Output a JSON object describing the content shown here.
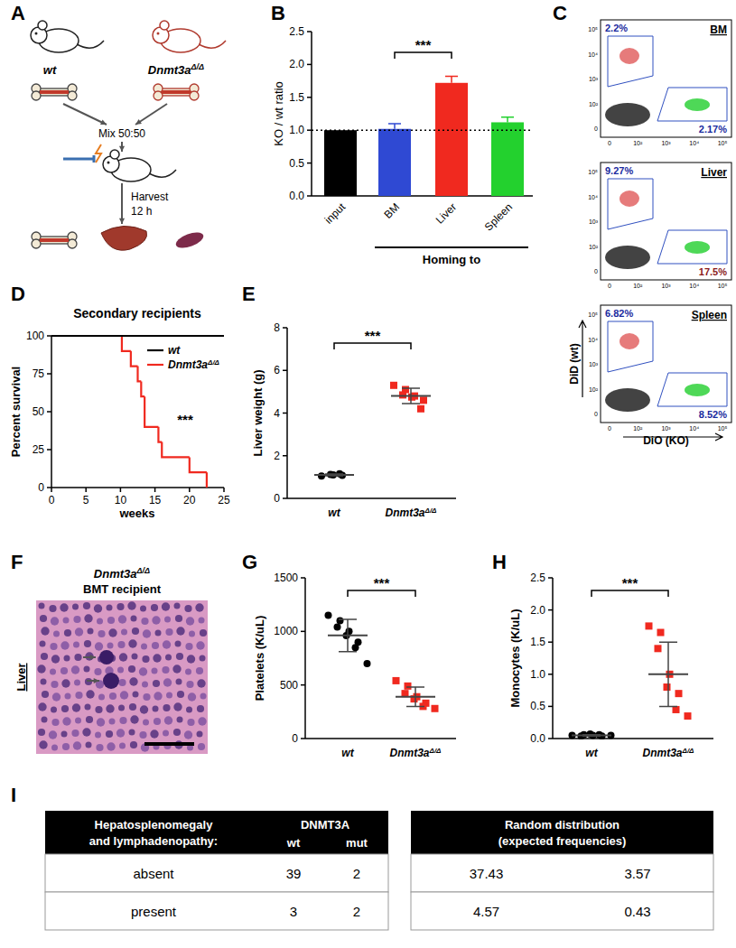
{
  "panel_labels": [
    "A",
    "B",
    "C",
    "D",
    "E",
    "F",
    "G",
    "H",
    "I"
  ],
  "diagram": {
    "donors": [
      "wt",
      "Dnmt3aΔ/Δ"
    ],
    "mix": "Mix 50:50",
    "harvest": [
      "Harvest",
      "12 h"
    ]
  },
  "chart_data": [
    {
      "type": "bar",
      "y_label": "KO / wt ratio",
      "categories": [
        "input",
        "BM",
        "Liver",
        "Spleen"
      ],
      "values": [
        1.0,
        1.02,
        1.72,
        1.12
      ],
      "errors": [
        0,
        0.08,
        0.1,
        0.08
      ],
      "colors": [
        "#000000",
        "#2f49d3",
        "#f0291f",
        "#23d12e"
      ],
      "ylim": [
        0,
        2.5
      ],
      "yticks": [
        {
          "value": 0,
          "label": "0.0"
        },
        {
          "value": 0.5,
          "label": "0.5"
        },
        {
          "value": 1,
          "label": "1.0"
        },
        {
          "value": 1.5,
          "label": "1.5"
        },
        {
          "value": 2,
          "label": "2.0"
        },
        {
          "value": 2.5,
          "label": "2.5"
        }
      ],
      "reference_line": 1,
      "group_label": "Homing to",
      "significance": "***"
    },
    {
      "type": "line",
      "line_style": "step",
      "title": "Secondary recipients",
      "x_label": "weeks",
      "y_label": "Percent survival",
      "xlim": [
        0,
        25
      ],
      "xticks": [
        0,
        5,
        10,
        15,
        20,
        25
      ],
      "ylim": [
        0,
        100
      ],
      "yticks": [
        0,
        25,
        50,
        75,
        100
      ],
      "legend": "upper right",
      "significance": "***",
      "series": [
        {
          "name": "wt",
          "color": "#000000",
          "x": [
            0,
            25
          ],
          "values": [
            100,
            100
          ]
        },
        {
          "name": "Dnmt3aΔ/Δ",
          "color": "#f0291f",
          "x": [
            0,
            10.2,
            11.5,
            12.5,
            13,
            13.5,
            15.5,
            16,
            20,
            22.5
          ],
          "values": [
            100,
            90,
            80,
            70,
            60,
            40,
            30,
            20,
            10,
            0
          ]
        }
      ]
    },
    {
      "type": "dot",
      "y_label": "Liver weight (g)",
      "ylim": [
        0,
        8
      ],
      "yticks": [
        0,
        2,
        4,
        6,
        8
      ],
      "significance": "***",
      "groups": [
        {
          "label": "wt",
          "color": "#000000",
          "marker": "circle",
          "values": [
            1.05,
            1.1,
            1.12,
            1.08,
            1.15
          ],
          "mean": 1.1,
          "sd": 0.04
        },
        {
          "label": "Dnmt3aΔ/Δ",
          "color": "#f0291f",
          "marker": "square",
          "values": [
            5.3,
            5.1,
            4.85,
            4.8,
            4.75,
            4.6,
            4.2
          ],
          "mean": 4.8,
          "sd": 0.36
        }
      ]
    },
    {
      "type": "dot",
      "y_label": "Platelets (K/uL)",
      "ylim": [
        0,
        1500
      ],
      "yticks": [
        0,
        500,
        1000,
        1500
      ],
      "significance": "***",
      "groups": [
        {
          "label": "wt",
          "color": "#000000",
          "marker": "circle",
          "values": [
            1150,
            1100,
            1040,
            1000,
            960,
            900,
            850,
            700
          ],
          "mean": 962,
          "sd": 150
        },
        {
          "label": "Dnmt3aΔ/Δ",
          "color": "#f0291f",
          "marker": "square",
          "values": [
            540,
            490,
            420,
            390,
            370,
            330,
            300,
            280
          ],
          "mean": 390,
          "sd": 90
        }
      ]
    },
    {
      "type": "dot",
      "y_label": "Monocytes (K/uL)",
      "ylim": [
        0,
        2.5
      ],
      "yticks": [
        {
          "value": 0,
          "label": "0.0"
        },
        {
          "value": 0.5,
          "label": "0.5"
        },
        {
          "value": 1,
          "label": "1.0"
        },
        {
          "value": 1.5,
          "label": "1.5"
        },
        {
          "value": 2,
          "label": "2.0"
        },
        {
          "value": 2.5,
          "label": "2.5"
        }
      ],
      "significance": "***",
      "groups": [
        {
          "label": "wt",
          "color": "#000000",
          "marker": "circle",
          "values": [
            0.05,
            0.06,
            0.04,
            0.05,
            0.07,
            0.04,
            0.06,
            0.05
          ],
          "mean": 0.05,
          "sd": 0.01
        },
        {
          "label": "Dnmt3aΔ/Δ",
          "color": "#f0291f",
          "marker": "square",
          "values": [
            1.75,
            1.65,
            1.4,
            1.0,
            0.8,
            0.7,
            0.45,
            0.35
          ],
          "mean": 1.0,
          "sd": 0.5
        }
      ]
    }
  ],
  "flow_cytometry": {
    "x_label": "DiO (KO)",
    "y_label": "DiD (wt)",
    "x_ticks": [
      "0",
      "10²",
      "10³",
      "10⁴",
      "10⁵"
    ],
    "y_ticks": [
      "0",
      "10²",
      "10³",
      "10⁴",
      "10⁵"
    ],
    "plots": [
      {
        "tissue": "BM",
        "gates": [
          "2.2%",
          "2.17%"
        ],
        "colors": [
          "#1a2a9e",
          "#1a2a9e"
        ]
      },
      {
        "tissue": "Liver",
        "gates": [
          "9.27%",
          "17.5%"
        ],
        "colors": [
          "#1a2a9e",
          "#8b1a1a"
        ]
      },
      {
        "tissue": "Spleen",
        "gates": [
          "6.82%",
          "8.52%"
        ],
        "colors": [
          "#1a2a9e",
          "#1a2a9e"
        ]
      }
    ]
  },
  "histology": {
    "title": [
      "Dnmt3aΔ/Δ",
      "BMT recipient"
    ],
    "tissue": "Liver"
  },
  "table": {
    "observed": {
      "header": [
        "Hepatosplenomegaly",
        "and lymphadenopathy:"
      ],
      "group": "DNMT3A",
      "columns": [
        "wt",
        "mut"
      ],
      "rows": [
        [
          "absent",
          "39",
          "2"
        ],
        [
          "present",
          "3",
          "2"
        ]
      ]
    },
    "expected": {
      "header": [
        "Random distribution",
        "(expected frequencies)"
      ],
      "rows": [
        [
          "37.43",
          "3.57"
        ],
        [
          "4.57",
          "0.43"
        ]
      ]
    }
  }
}
